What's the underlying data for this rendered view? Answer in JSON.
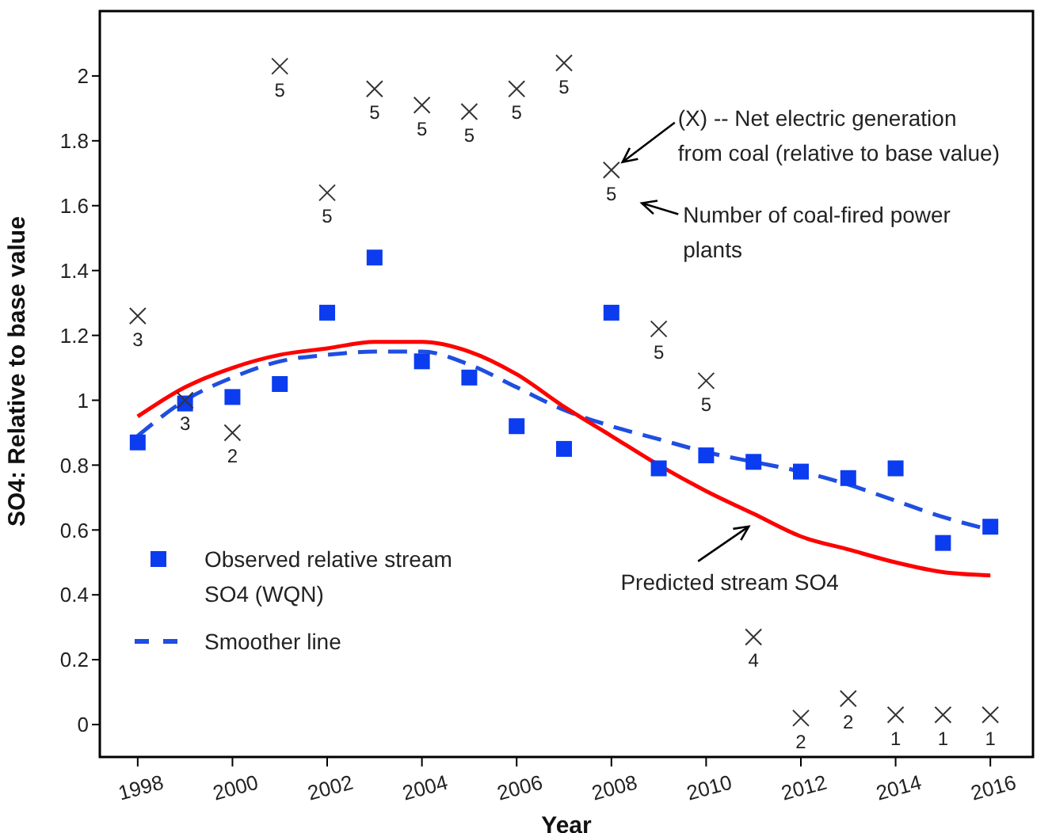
{
  "chart_data": {
    "type": "scatter",
    "xlabel": "Year",
    "ylabel": "SO4: Relative to base value",
    "x": [
      1998,
      1999,
      2000,
      2001,
      2002,
      2003,
      2004,
      2005,
      2006,
      2007,
      2008,
      2009,
      2010,
      2011,
      2012,
      2013,
      2014,
      2015,
      2016
    ],
    "series": [
      {
        "name": "Observed relative stream SO4 (WQN)",
        "color": "#0b3cf0",
        "marker": "square",
        "values": [
          0.87,
          0.99,
          1.01,
          1.05,
          1.27,
          1.44,
          1.12,
          1.07,
          0.92,
          0.85,
          1.27,
          0.79,
          0.83,
          0.81,
          0.78,
          0.76,
          0.79,
          0.56,
          0.61
        ]
      },
      {
        "type": "line",
        "name": "Smoother line",
        "color": "#1f4ee0",
        "line_style": "dashed",
        "marker": "none",
        "values": [
          0.89,
          1.0,
          1.07,
          1.12,
          1.14,
          1.15,
          1.15,
          1.11,
          1.04,
          0.97,
          0.92,
          0.88,
          0.84,
          0.81,
          0.78,
          0.74,
          0.69,
          0.64,
          0.6
        ]
      },
      {
        "type": "line",
        "color": "#ff0000",
        "line_style": "solid",
        "marker": "none",
        "values": [
          0.95,
          1.04,
          1.1,
          1.14,
          1.16,
          1.18,
          1.18,
          1.15,
          1.08,
          0.98,
          0.89,
          0.8,
          0.72,
          0.65,
          0.58,
          0.54,
          0.5,
          0.47,
          0.46
        ]
      },
      {
        "color": "#333333",
        "marker": "cross",
        "values": [
          1.26,
          1.0,
          0.9,
          2.03,
          1.64,
          1.96,
          1.91,
          1.89,
          1.96,
          2.04,
          1.71,
          1.22,
          1.06,
          0.27,
          0.02,
          0.08,
          0.03,
          0.03,
          0.03
        ]
      }
    ],
    "annotations": [
      {
        "text": "(X) -- Net electric generation from coal (relative to base value)",
        "x": 2008,
        "y": 1.71
      },
      "Number of coal-fired power plants",
      {
        "text": "Predicted stream SO4",
        "x": 2011,
        "y": 0.65
      },
      {
        "text": "3",
        "x": 1998,
        "y": 1.26
      },
      {
        "text": "3",
        "x": 1999,
        "y": 1.0
      },
      {
        "text": "2",
        "x": 2000,
        "y": 0.9
      },
      {
        "text": "5",
        "x": 2001,
        "y": 2.03
      },
      {
        "text": "5",
        "x": 2002,
        "y": 1.64
      },
      {
        "text": "5",
        "x": 2003,
        "y": 1.96
      },
      {
        "text": "5",
        "x": 2004,
        "y": 1.91
      },
      {
        "text": "5",
        "x": 2005,
        "y": 1.89
      },
      {
        "text": "5",
        "x": 2006,
        "y": 1.96
      },
      {
        "text": "5",
        "x": 2007,
        "y": 2.04
      },
      {
        "text": "5",
        "x": 2008,
        "y": 1.71
      },
      {
        "text": "5",
        "x": 2009,
        "y": 1.22
      },
      {
        "text": "5",
        "x": 2010,
        "y": 1.06
      },
      {
        "text": "4",
        "x": 2011,
        "y": 0.27
      },
      {
        "text": "2",
        "x": 2012,
        "y": 0.02
      },
      {
        "text": "2",
        "x": 2013,
        "y": 0.08
      },
      {
        "text": "1",
        "x": 2014,
        "y": 0.03
      },
      {
        "text": "1",
        "x": 2015,
        "y": 0.03
      },
      {
        "text": "1",
        "x": 2016,
        "y": 0.03
      }
    ],
    "xlim": [
      1997.2,
      2016.9
    ],
    "ylim": [
      -0.1,
      2.2
    ],
    "xticks": [
      1998,
      2000,
      2002,
      2004,
      2006,
      2008,
      2010,
      2012,
      2014,
      2016
    ],
    "yticks": [
      0,
      0.2,
      0.4,
      0.6,
      0.8,
      1,
      1.2,
      1.4,
      1.6,
      1.8,
      2
    ],
    "grid": false,
    "legend": "bottom left"
  }
}
